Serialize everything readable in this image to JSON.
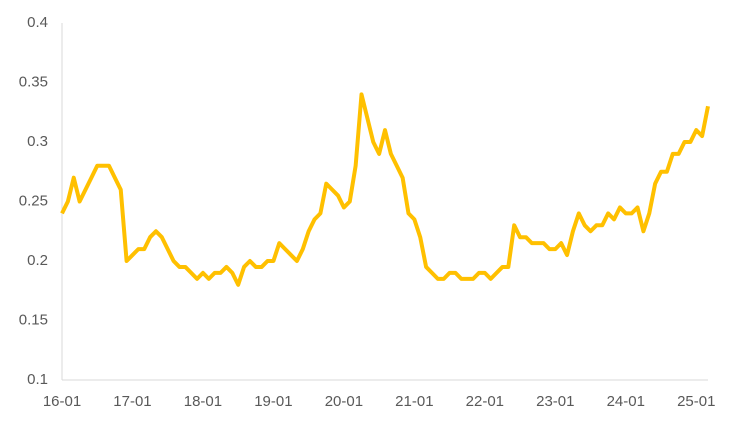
{
  "chart_data": {
    "type": "line",
    "categories": [
      "16-01",
      null,
      null,
      null,
      null,
      null,
      null,
      null,
      null,
      null,
      null,
      null,
      "17-01",
      null,
      null,
      null,
      null,
      null,
      null,
      null,
      null,
      null,
      null,
      null,
      "18-01",
      null,
      null,
      null,
      null,
      null,
      null,
      null,
      null,
      null,
      null,
      null,
      "19-01",
      null,
      null,
      null,
      null,
      null,
      null,
      null,
      null,
      null,
      null,
      null,
      "20-01",
      null,
      null,
      null,
      null,
      null,
      null,
      null,
      null,
      null,
      null,
      null,
      "21-01",
      null,
      null,
      null,
      null,
      null,
      null,
      null,
      null,
      null,
      null,
      null,
      "22-01",
      null,
      null,
      null,
      null,
      null,
      null,
      null,
      null,
      null,
      null,
      null,
      "23-01",
      null,
      null,
      null,
      null,
      null,
      null,
      null,
      null,
      null,
      null,
      null,
      "24-01",
      null,
      null,
      null,
      null,
      null,
      null,
      null,
      null,
      null,
      null,
      null,
      "25-01",
      null,
      null
    ],
    "series": [
      {
        "color": "#ffc000",
        "values": [
          0.24,
          0.25,
          0.27,
          0.25,
          0.26,
          0.27,
          0.28,
          0.28,
          0.28,
          0.27,
          0.26,
          0.2,
          0.205,
          0.21,
          0.21,
          0.22,
          0.225,
          0.22,
          0.21,
          0.2,
          0.195,
          0.195,
          0.19,
          0.185,
          0.19,
          0.185,
          0.19,
          0.19,
          0.195,
          0.19,
          0.18,
          0.195,
          0.2,
          0.195,
          0.195,
          0.2,
          0.2,
          0.215,
          0.21,
          0.205,
          0.2,
          0.21,
          0.225,
          0.235,
          0.24,
          0.265,
          0.26,
          0.255,
          0.245,
          0.25,
          0.28,
          0.34,
          0.32,
          0.3,
          0.29,
          0.31,
          0.29,
          0.28,
          0.27,
          0.24,
          0.235,
          0.22,
          0.195,
          0.19,
          0.185,
          0.185,
          0.19,
          0.19,
          0.185,
          0.185,
          0.185,
          0.19,
          0.19,
          0.185,
          0.19,
          0.195,
          0.195,
          0.23,
          0.22,
          0.22,
          0.215,
          0.215,
          0.215,
          0.21,
          0.21,
          0.215,
          0.205,
          0.225,
          0.24,
          0.23,
          0.225,
          0.23,
          0.23,
          0.24,
          0.235,
          0.245,
          0.24,
          0.24,
          0.245,
          0.225,
          0.24,
          0.265,
          0.275,
          0.275,
          0.29,
          0.29,
          0.3,
          0.3,
          0.31,
          0.305,
          0.33
        ]
      }
    ],
    "ylim": [
      0.1,
      0.4
    ],
    "yticks": [
      0.1,
      0.15,
      0.2,
      0.25,
      0.3,
      0.35,
      0.4
    ]
  }
}
